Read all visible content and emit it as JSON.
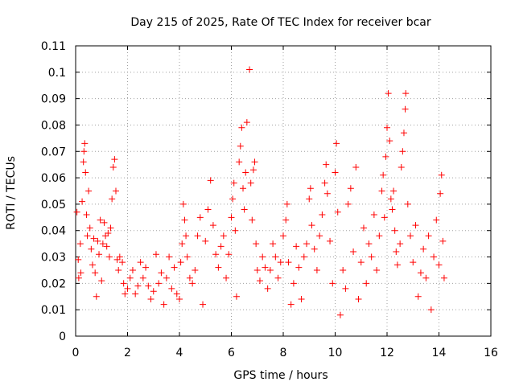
{
  "chart_data": {
    "type": "scatter",
    "title": "Day 215 of 2025, Rate Of TEC Index for receiver bcar",
    "xlabel": "GPS time / hours",
    "ylabel": "ROTI / TECUs",
    "xlim": [
      0,
      16
    ],
    "ylim": [
      0,
      0.11
    ],
    "xticks": [
      "0",
      "2",
      "4",
      "6",
      "8",
      "10",
      "12",
      "14",
      "16"
    ],
    "yticks": [
      "0",
      "0.01",
      "0.02",
      "0.03",
      "0.04",
      "0.05",
      "0.06",
      "0.07",
      "0.08",
      "0.09",
      "0.1",
      "0.11"
    ],
    "grid": true,
    "marker": "plus",
    "color": "#ff0000",
    "series": [
      {
        "points": [
          [
            0.05,
            0.047
          ],
          [
            0.1,
            0.029
          ],
          [
            0.12,
            0.022
          ],
          [
            0.18,
            0.035
          ],
          [
            0.2,
            0.024
          ],
          [
            0.25,
            0.051
          ],
          [
            0.3,
            0.066
          ],
          [
            0.32,
            0.07
          ],
          [
            0.35,
            0.073
          ],
          [
            0.38,
            0.062
          ],
          [
            0.42,
            0.046
          ],
          [
            0.45,
            0.038
          ],
          [
            0.5,
            0.055
          ],
          [
            0.55,
            0.041
          ],
          [
            0.6,
            0.033
          ],
          [
            0.65,
            0.027
          ],
          [
            0.7,
            0.037
          ],
          [
            0.75,
            0.024
          ],
          [
            0.8,
            0.015
          ],
          [
            0.85,
            0.036
          ],
          [
            0.9,
            0.031
          ],
          [
            0.95,
            0.044
          ],
          [
            1.0,
            0.021
          ],
          [
            1.05,
            0.035
          ],
          [
            1.1,
            0.043
          ],
          [
            1.15,
            0.038
          ],
          [
            1.2,
            0.034
          ],
          [
            1.25,
            0.039
          ],
          [
            1.3,
            0.03
          ],
          [
            1.35,
            0.041
          ],
          [
            1.4,
            0.052
          ],
          [
            1.45,
            0.064
          ],
          [
            1.5,
            0.067
          ],
          [
            1.55,
            0.055
          ],
          [
            1.6,
            0.029
          ],
          [
            1.65,
            0.025
          ],
          [
            1.7,
            0.03
          ],
          [
            1.8,
            0.028
          ],
          [
            1.85,
            0.02
          ],
          [
            1.9,
            0.016
          ],
          [
            2.0,
            0.018
          ],
          [
            2.1,
            0.022
          ],
          [
            2.2,
            0.025
          ],
          [
            2.3,
            0.016
          ],
          [
            2.4,
            0.019
          ],
          [
            2.5,
            0.028
          ],
          [
            2.6,
            0.022
          ],
          [
            2.7,
            0.026
          ],
          [
            2.8,
            0.019
          ],
          [
            2.9,
            0.014
          ],
          [
            3.0,
            0.017
          ],
          [
            3.1,
            0.031
          ],
          [
            3.2,
            0.02
          ],
          [
            3.3,
            0.024
          ],
          [
            3.4,
            0.012
          ],
          [
            3.5,
            0.022
          ],
          [
            3.6,
            0.03
          ],
          [
            3.7,
            0.018
          ],
          [
            3.8,
            0.026
          ],
          [
            3.9,
            0.016
          ],
          [
            4.0,
            0.014
          ],
          [
            4.05,
            0.028
          ],
          [
            4.1,
            0.035
          ],
          [
            4.15,
            0.05
          ],
          [
            4.2,
            0.044
          ],
          [
            4.25,
            0.038
          ],
          [
            4.3,
            0.03
          ],
          [
            4.4,
            0.022
          ],
          [
            4.5,
            0.02
          ],
          [
            4.6,
            0.025
          ],
          [
            4.7,
            0.038
          ],
          [
            4.8,
            0.045
          ],
          [
            4.9,
            0.012
          ],
          [
            5.0,
            0.036
          ],
          [
            5.1,
            0.048
          ],
          [
            5.2,
            0.059
          ],
          [
            5.3,
            0.042
          ],
          [
            5.4,
            0.031
          ],
          [
            5.5,
            0.026
          ],
          [
            5.6,
            0.034
          ],
          [
            5.7,
            0.038
          ],
          [
            5.8,
            0.022
          ],
          [
            5.9,
            0.031
          ],
          [
            6.0,
            0.045
          ],
          [
            6.05,
            0.052
          ],
          [
            6.1,
            0.058
          ],
          [
            6.15,
            0.04
          ],
          [
            6.2,
            0.015
          ],
          [
            6.3,
            0.066
          ],
          [
            6.35,
            0.072
          ],
          [
            6.4,
            0.079
          ],
          [
            6.45,
            0.056
          ],
          [
            6.5,
            0.048
          ],
          [
            6.55,
            0.062
          ],
          [
            6.6,
            0.081
          ],
          [
            6.7,
            0.101
          ],
          [
            6.75,
            0.058
          ],
          [
            6.8,
            0.044
          ],
          [
            6.85,
            0.063
          ],
          [
            6.9,
            0.066
          ],
          [
            6.95,
            0.035
          ],
          [
            7.0,
            0.025
          ],
          [
            7.1,
            0.021
          ],
          [
            7.2,
            0.03
          ],
          [
            7.3,
            0.026
          ],
          [
            7.4,
            0.018
          ],
          [
            7.5,
            0.025
          ],
          [
            7.6,
            0.035
          ],
          [
            7.7,
            0.03
          ],
          [
            7.8,
            0.022
          ],
          [
            7.9,
            0.028
          ],
          [
            8.0,
            0.038
          ],
          [
            8.1,
            0.044
          ],
          [
            8.15,
            0.05
          ],
          [
            8.2,
            0.028
          ],
          [
            8.3,
            0.012
          ],
          [
            8.4,
            0.02
          ],
          [
            8.5,
            0.034
          ],
          [
            8.6,
            0.026
          ],
          [
            8.7,
            0.014
          ],
          [
            8.8,
            0.03
          ],
          [
            8.9,
            0.035
          ],
          [
            9.0,
            0.052
          ],
          [
            9.05,
            0.056
          ],
          [
            9.1,
            0.042
          ],
          [
            9.2,
            0.033
          ],
          [
            9.3,
            0.025
          ],
          [
            9.4,
            0.038
          ],
          [
            9.5,
            0.046
          ],
          [
            9.6,
            0.058
          ],
          [
            9.65,
            0.065
          ],
          [
            9.7,
            0.054
          ],
          [
            9.8,
            0.036
          ],
          [
            9.9,
            0.02
          ],
          [
            10.0,
            0.062
          ],
          [
            10.05,
            0.073
          ],
          [
            10.1,
            0.047
          ],
          [
            10.2,
            0.008
          ],
          [
            10.3,
            0.025
          ],
          [
            10.4,
            0.018
          ],
          [
            10.5,
            0.05
          ],
          [
            10.6,
            0.056
          ],
          [
            10.7,
            0.032
          ],
          [
            10.8,
            0.064
          ],
          [
            10.9,
            0.014
          ],
          [
            11.0,
            0.028
          ],
          [
            11.1,
            0.041
          ],
          [
            11.2,
            0.02
          ],
          [
            11.3,
            0.035
          ],
          [
            11.4,
            0.03
          ],
          [
            11.5,
            0.046
          ],
          [
            11.6,
            0.025
          ],
          [
            11.7,
            0.038
          ],
          [
            11.8,
            0.055
          ],
          [
            11.85,
            0.061
          ],
          [
            11.9,
            0.045
          ],
          [
            11.95,
            0.068
          ],
          [
            12.0,
            0.079
          ],
          [
            12.05,
            0.092
          ],
          [
            12.1,
            0.074
          ],
          [
            12.15,
            0.052
          ],
          [
            12.2,
            0.048
          ],
          [
            12.25,
            0.055
          ],
          [
            12.3,
            0.04
          ],
          [
            12.35,
            0.032
          ],
          [
            12.4,
            0.027
          ],
          [
            12.5,
            0.035
          ],
          [
            12.55,
            0.064
          ],
          [
            12.6,
            0.07
          ],
          [
            12.65,
            0.077
          ],
          [
            12.7,
            0.086
          ],
          [
            12.72,
            0.092
          ],
          [
            12.8,
            0.05
          ],
          [
            12.9,
            0.038
          ],
          [
            13.0,
            0.028
          ],
          [
            13.1,
            0.042
          ],
          [
            13.2,
            0.015
          ],
          [
            13.3,
            0.024
          ],
          [
            13.4,
            0.033
          ],
          [
            13.5,
            0.022
          ],
          [
            13.6,
            0.038
          ],
          [
            13.7,
            0.01
          ],
          [
            13.8,
            0.03
          ],
          [
            13.9,
            0.044
          ],
          [
            14.0,
            0.027
          ],
          [
            14.05,
            0.054
          ],
          [
            14.1,
            0.061
          ],
          [
            14.15,
            0.036
          ],
          [
            14.2,
            0.022
          ]
        ]
      }
    ]
  }
}
